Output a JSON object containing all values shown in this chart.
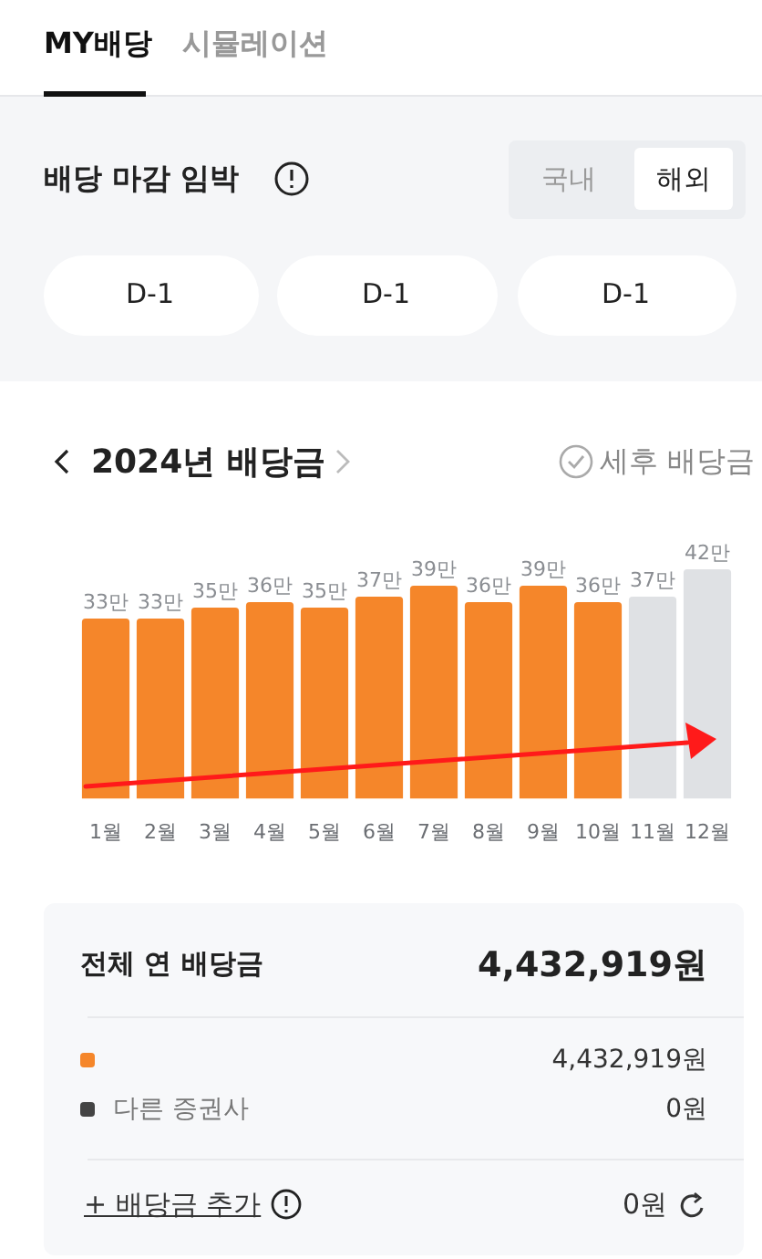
{
  "chart_data": {
    "type": "bar",
    "title": "2024년 배당금",
    "categories": [
      "1월",
      "2월",
      "3월",
      "4월",
      "5월",
      "6월",
      "7월",
      "8월",
      "9월",
      "10월",
      "11월",
      "12월"
    ],
    "values": [
      33,
      33,
      35,
      36,
      35,
      37,
      39,
      36,
      39,
      36,
      37,
      42
    ],
    "value_labels": [
      "33만",
      "33만",
      "35만",
      "36만",
      "35만",
      "37만",
      "39만",
      "36만",
      "39만",
      "36만",
      "37만",
      "42만"
    ],
    "colors": [
      "#f5862a",
      "#f5862a",
      "#f5862a",
      "#f5862a",
      "#f5862a",
      "#f5862a",
      "#f5862a",
      "#f5862a",
      "#f5862a",
      "#f5862a",
      "#dfe1e4",
      "#dfe1e4"
    ],
    "grid": false,
    "legend": false,
    "tick_labels": "x",
    "annotations": [
      "MY배당",
      "시뮬레이션",
      "배당 마감 임박",
      "국내",
      "해외",
      "D-1",
      "D-1",
      "D-1",
      "세후 배당금",
      "전체 연 배당금",
      "4,432,919원",
      "4,432,919원",
      "다른 증권사",
      "0원",
      "+ 배당금 추가",
      "0원"
    ]
  }
}
